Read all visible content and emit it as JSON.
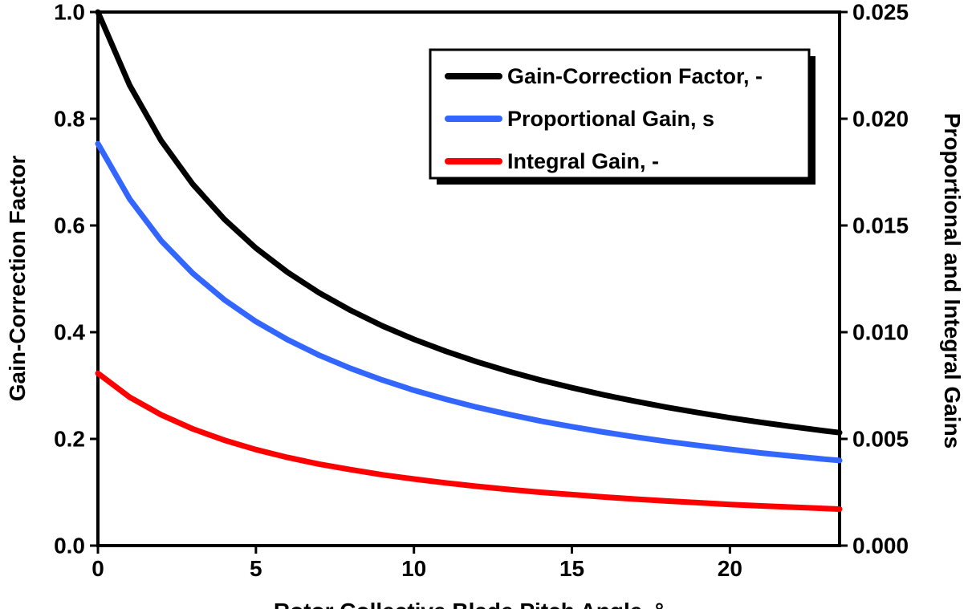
{
  "chart_data": {
    "type": "line",
    "title": "",
    "xlabel": "Rotor Collective Blade Pitch Angle, °",
    "ylabel_left": "Gain-Correction Factor",
    "ylabel_right": "Proportional and Integral Gains",
    "xlim": [
      0,
      23.47
    ],
    "ylim_left": [
      0,
      1.0
    ],
    "ylim_right": [
      0,
      0.025
    ],
    "grid": false,
    "legend_position": "top-right-inside",
    "xticks": {
      "values": [
        0,
        5,
        10,
        15,
        20
      ],
      "labels": [
        "0",
        "5",
        "10",
        "15",
        "20"
      ]
    },
    "yticks_left": {
      "values": [
        0,
        0.2,
        0.4,
        0.6,
        0.8,
        1.0
      ],
      "labels": [
        "0.0",
        "0.2",
        "0.4",
        "0.6",
        "0.8",
        "1.0"
      ]
    },
    "yticks_right": {
      "values": [
        0,
        0.005,
        0.01,
        0.015,
        0.02,
        0.025
      ],
      "labels": [
        "0.000",
        "0.005",
        "0.010",
        "0.015",
        "0.020",
        "0.025"
      ]
    },
    "x": [
      0,
      1,
      2,
      3,
      4,
      5,
      6,
      7,
      8,
      9,
      10,
      11,
      12,
      13,
      14,
      15,
      16,
      17,
      18,
      19,
      20,
      21,
      22,
      23,
      23.47
    ],
    "series": [
      {
        "name": "Gain-Correction Factor, -",
        "axis": "left",
        "color": "#000000",
        "values": [
          1.0,
          0.8631,
          0.7591,
          0.6775,
          0.6118,
          0.5576,
          0.5123,
          0.4738,
          0.4407,
          0.4119,
          0.3866,
          0.3643,
          0.3444,
          0.3265,
          0.3104,
          0.2959,
          0.2826,
          0.2705,
          0.2593,
          0.2491,
          0.2396,
          0.2308,
          0.2227,
          0.2151,
          0.2117
        ]
      },
      {
        "name": "Proportional Gain, s",
        "axis": "right",
        "color": "#3366FF",
        "values": [
          0.01883,
          0.01625,
          0.01429,
          0.01276,
          0.01152,
          0.0105,
          0.00965,
          0.00892,
          0.0083,
          0.00776,
          0.00728,
          0.00686,
          0.00648,
          0.00615,
          0.00584,
          0.00557,
          0.00532,
          0.00509,
          0.00488,
          0.00469,
          0.00451,
          0.00434,
          0.00419,
          0.00405,
          0.00399
        ]
      },
      {
        "name": "Integral Gain, -",
        "axis": "right",
        "color": "#FF0000",
        "values": [
          0.00807,
          0.00696,
          0.00613,
          0.00547,
          0.00494,
          0.0045,
          0.00413,
          0.00382,
          0.00356,
          0.00332,
          0.00312,
          0.00294,
          0.00278,
          0.00263,
          0.0025,
          0.00239,
          0.00228,
          0.00218,
          0.00209,
          0.00201,
          0.00193,
          0.00186,
          0.0018,
          0.00174,
          0.00171
        ]
      }
    ],
    "legend": {
      "entries": [
        "Gain-Correction Factor, -",
        "Proportional Gain, s",
        "Integral Gain, -"
      ]
    }
  }
}
